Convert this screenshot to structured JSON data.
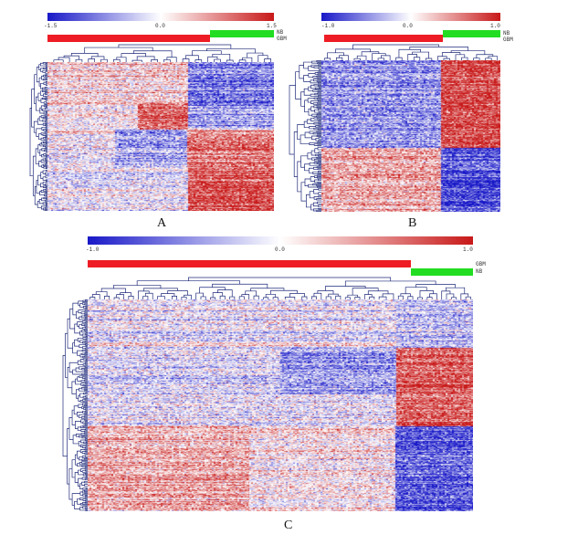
{
  "panels": [
    {
      "label": "A",
      "scale": {
        "min": "-1.5",
        "mid": "0.0",
        "max": "1.5"
      },
      "groups": [
        {
          "name": "NB",
          "color": "#22dd22"
        },
        {
          "name": "GBM",
          "color": "#ee1c24"
        }
      ],
      "blocks": [
        {
          "rows": 0.28,
          "cols": [
            {
              "w": 0.62,
              "v": 0.2
            },
            {
              "w": 0.38,
              "v": -0.55
            }
          ]
        },
        {
          "rows": 0.17,
          "cols": [
            {
              "w": 0.4,
              "v": 0.05
            },
            {
              "w": 0.22,
              "v": 0.65
            },
            {
              "w": 0.38,
              "v": -0.35
            }
          ]
        },
        {
          "rows": 0.25,
          "cols": [
            {
              "w": 0.3,
              "v": 0.0
            },
            {
              "w": 0.32,
              "v": -0.35
            },
            {
              "w": 0.38,
              "v": 0.6
            }
          ]
        },
        {
          "rows": 0.3,
          "cols": [
            {
              "w": 0.62,
              "v": -0.05
            },
            {
              "w": 0.38,
              "v": 0.75
            }
          ]
        }
      ]
    },
    {
      "label": "B",
      "scale": {
        "min": "-1.0",
        "mid": "0.0",
        "max": "1.0"
      },
      "groups": [
        {
          "name": "NB",
          "color": "#22dd22"
        },
        {
          "name": "GBM",
          "color": "#ee1c24"
        }
      ],
      "blocks": [
        {
          "rows": 0.58,
          "cols": [
            {
              "w": 0.67,
              "v": -0.4
            },
            {
              "w": 0.33,
              "v": 0.8
            }
          ]
        },
        {
          "rows": 0.42,
          "cols": [
            {
              "w": 0.67,
              "v": 0.4
            },
            {
              "w": 0.33,
              "v": -0.75
            }
          ]
        }
      ]
    },
    {
      "label": "C",
      "scale": {
        "min": "-1.0",
        "mid": "0.0",
        "max": "1.0"
      },
      "groups": [
        {
          "name": "GBM",
          "color": "#ee1c24"
        },
        {
          "name": "NB",
          "color": "#22dd22"
        }
      ],
      "blocks": [
        {
          "rows": 0.23,
          "cols": [
            {
              "w": 0.8,
              "v": -0.05
            },
            {
              "w": 0.2,
              "v": -0.25
            }
          ]
        },
        {
          "rows": 0.22,
          "cols": [
            {
              "w": 0.5,
              "v": -0.15
            },
            {
              "w": 0.3,
              "v": -0.45
            },
            {
              "w": 0.2,
              "v": 0.75
            }
          ]
        },
        {
          "rows": 0.15,
          "cols": [
            {
              "w": 0.8,
              "v": -0.05
            },
            {
              "w": 0.2,
              "v": 0.7
            }
          ]
        },
        {
          "rows": 0.4,
          "cols": [
            {
              "w": 0.42,
              "v": 0.35
            },
            {
              "w": 0.38,
              "v": 0.1
            },
            {
              "w": 0.2,
              "v": -0.7
            }
          ]
        }
      ]
    }
  ],
  "colors": {
    "low": "#1818c8",
    "mid": "#ffffff",
    "high": "#c81818",
    "tree": "#1f2a7a"
  }
}
